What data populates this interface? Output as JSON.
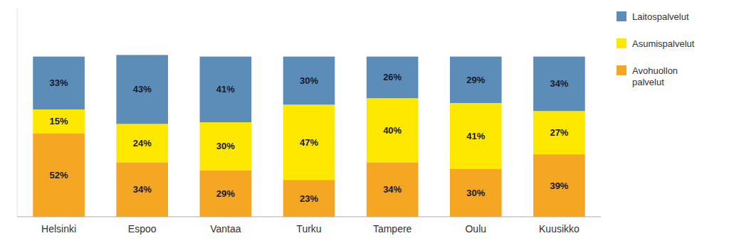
{
  "chart_data": {
    "type": "bar",
    "stacked": true,
    "categories": [
      "Helsinki",
      "Espoo",
      "Vantaa",
      "Turku",
      "Tampere",
      "Oulu",
      "Kuusikko"
    ],
    "series": [
      {
        "name": "Avohuollon\npalvelut",
        "color": "#F5A623",
        "values": [
          52,
          34,
          29,
          23,
          34,
          30,
          39
        ],
        "value_labels": [
          "52%",
          "34%",
          "29%",
          "23%",
          "34%",
          "30%",
          "39%"
        ]
      },
      {
        "name": "Asumispalvelut",
        "color": "#FFE800",
        "values": [
          15,
          24,
          30,
          47,
          40,
          41,
          27
        ],
        "value_labels": [
          "15%",
          "24%",
          "30%",
          "47%",
          "40%",
          "41%",
          "27%"
        ]
      },
      {
        "name": "Laitospalvelut",
        "color": "#5B8DB8",
        "values": [
          33,
          43,
          41,
          30,
          26,
          29,
          34
        ],
        "value_labels": [
          "33%",
          "43%",
          "41%",
          "30%",
          "26%",
          "29%",
          "34%"
        ]
      }
    ],
    "ylim": [
      0,
      130
    ],
    "grid": false,
    "legend": "right",
    "data_labels": true,
    "tick_labels": "x"
  }
}
